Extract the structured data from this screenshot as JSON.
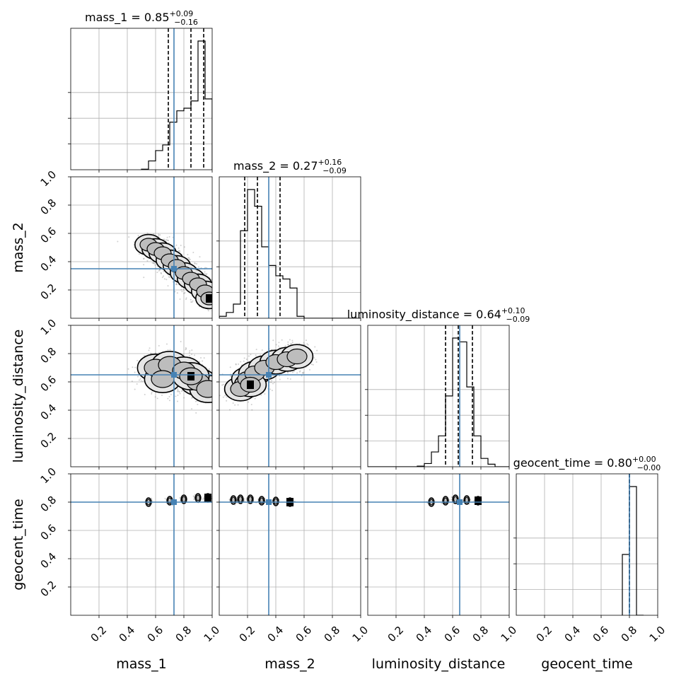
{
  "chart_data": {
    "type": "corner",
    "parameters": [
      "mass_1",
      "mass_2",
      "luminosity_distance",
      "geocent_time"
    ],
    "truths": [
      0.73,
      0.35,
      0.65,
      0.8
    ],
    "truth_color": "#4682b4",
    "axis_range": [
      0,
      1
    ],
    "tick_labels": [
      "0.2",
      "0.4",
      "0.6",
      "0.8",
      "1.0"
    ],
    "grid": true,
    "summaries": [
      {
        "label": "mass_1 = 0.85",
        "sup": "+0.09",
        "sub": "−0.16",
        "median": 0.85,
        "lower": 0.69,
        "upper": 0.94
      },
      {
        "label": "mass_2 = 0.27",
        "sup": "+0.16",
        "sub": "−0.09",
        "median": 0.27,
        "lower": 0.18,
        "upper": 0.43
      },
      {
        "label": "luminosity_distance = 0.64",
        "sup": "+0.10",
        "sub": "−0.09",
        "median": 0.64,
        "lower": 0.55,
        "upper": 0.74
      },
      {
        "label": "geocent_time = 0.80",
        "sup": "+0.00",
        "sub": "−0.00",
        "median": 0.8,
        "lower": 0.8,
        "upper": 0.8
      }
    ],
    "histograms": [
      {
        "edges": [
          0.5,
          0.55,
          0.6,
          0.65,
          0.7,
          0.75,
          0.8,
          0.85,
          0.9,
          0.95,
          1.0
        ],
        "counts": [
          1,
          17,
          37,
          48,
          92,
          114,
          119,
          133,
          249,
          137
        ]
      },
      {
        "edges": [
          0.0,
          0.05,
          0.1,
          0.15,
          0.2,
          0.25,
          0.3,
          0.35,
          0.4,
          0.45,
          0.5,
          0.55,
          0.6,
          0.65,
          0.7,
          0.75,
          0.8,
          0.85,
          0.9,
          0.95,
          1.0
        ],
        "counts": [
          3,
          9,
          22,
          136,
          200,
          174,
          111,
          82,
          66,
          61,
          47,
          3,
          0,
          0,
          0,
          0,
          0,
          0,
          0,
          0
        ]
      },
      {
        "edges": [
          0.0,
          0.05,
          0.1,
          0.15,
          0.2,
          0.25,
          0.3,
          0.35,
          0.4,
          0.45,
          0.5,
          0.55,
          0.6,
          0.65,
          0.7,
          0.75,
          0.8,
          0.85,
          0.9,
          0.95,
          1.0
        ],
        "counts": [
          0,
          0,
          0,
          0,
          0,
          0,
          0,
          1,
          5,
          23,
          48,
          110,
          200,
          194,
          124,
          48,
          13,
          4,
          0,
          0
        ]
      },
      {
        "edges": [
          0.75,
          0.8,
          0.85,
          0.9
        ],
        "counts": [
          43,
          91,
          0
        ]
      }
    ],
    "pairs": [
      {
        "row": 1,
        "col": 0,
        "points": [
          [
            0.55,
            0.52
          ],
          [
            0.6,
            0.49
          ],
          [
            0.65,
            0.46
          ],
          [
            0.7,
            0.41
          ],
          [
            0.75,
            0.37
          ],
          [
            0.8,
            0.32
          ],
          [
            0.85,
            0.28
          ],
          [
            0.9,
            0.24
          ],
          [
            0.95,
            0.19
          ],
          [
            0.98,
            0.14
          ]
        ],
        "spread": 0.06
      },
      {
        "row": 2,
        "col": 0,
        "points": [
          [
            0.6,
            0.7
          ],
          [
            0.7,
            0.72
          ],
          [
            0.8,
            0.68
          ],
          [
            0.9,
            0.6
          ],
          [
            0.97,
            0.55
          ],
          [
            0.65,
            0.62
          ],
          [
            0.85,
            0.64
          ]
        ],
        "spread": 0.08
      },
      {
        "row": 2,
        "col": 1,
        "points": [
          [
            0.15,
            0.55
          ],
          [
            0.2,
            0.62
          ],
          [
            0.25,
            0.66
          ],
          [
            0.32,
            0.7
          ],
          [
            0.4,
            0.74
          ],
          [
            0.48,
            0.76
          ],
          [
            0.55,
            0.78
          ],
          [
            0.22,
            0.58
          ]
        ],
        "spread": 0.07
      },
      {
        "row": 3,
        "col": 0,
        "points": [
          [
            0.55,
            0.8
          ],
          [
            0.7,
            0.81
          ],
          [
            0.8,
            0.82
          ],
          [
            0.9,
            0.83
          ],
          [
            0.97,
            0.83
          ]
        ],
        "spread": 0.012
      },
      {
        "row": 3,
        "col": 1,
        "points": [
          [
            0.1,
            0.815
          ],
          [
            0.15,
            0.82
          ],
          [
            0.22,
            0.82
          ],
          [
            0.3,
            0.81
          ],
          [
            0.4,
            0.805
          ],
          [
            0.5,
            0.8
          ]
        ],
        "spread": 0.012
      },
      {
        "row": 3,
        "col": 2,
        "points": [
          [
            0.45,
            0.8
          ],
          [
            0.55,
            0.81
          ],
          [
            0.62,
            0.82
          ],
          [
            0.7,
            0.815
          ],
          [
            0.78,
            0.81
          ]
        ],
        "spread": 0.012
      }
    ]
  }
}
